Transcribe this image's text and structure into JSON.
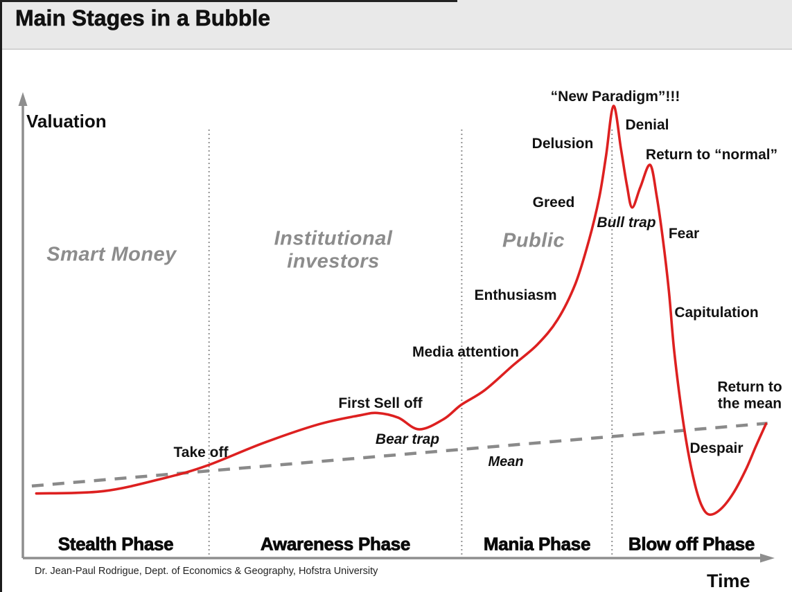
{
  "title": "Main Stages in a Bubble",
  "attribution": "Dr. Jean-Paul Rodrigue, Dept. of Economics & Geography, Hofstra University",
  "colors": {
    "curve": "#dd2020",
    "mean_line": "#8a8a8a",
    "axis": "#8e8e8e",
    "divider": "#909090",
    "title_band_bg": "#e9e9e9",
    "group_label_gray": "#8c8c8c",
    "text": "#111111"
  },
  "chart_data": {
    "type": "line",
    "title": "Main Stages in a Bubble",
    "xlabel": "Time",
    "ylabel": "Valuation",
    "axis_numeric": false,
    "grid": false,
    "x_range": [
      0,
      100
    ],
    "y_range": [
      0,
      100
    ],
    "series": [
      {
        "name": "Valuation (bubble life-cycle)",
        "style": "solid",
        "points": [
          [
            1.8,
            13.8
          ],
          [
            10.8,
            14.3
          ],
          [
            19.2,
            17.2
          ],
          [
            24.7,
            19.8
          ],
          [
            32.2,
            24.6
          ],
          [
            39.6,
            28.6
          ],
          [
            45.1,
            30.5
          ],
          [
            47.4,
            31.0
          ],
          [
            50.2,
            30.0
          ],
          [
            53.0,
            27.5
          ],
          [
            56.3,
            29.7
          ],
          [
            58.6,
            32.7
          ],
          [
            61.8,
            35.9
          ],
          [
            65.5,
            41.1
          ],
          [
            68.8,
            45.6
          ],
          [
            71.5,
            50.9
          ],
          [
            73.9,
            58.6
          ],
          [
            75.7,
            67.8
          ],
          [
            77.1,
            77.1
          ],
          [
            78.0,
            85.9
          ],
          [
            79.0,
            96.6
          ],
          [
            80.0,
            87.4
          ],
          [
            80.8,
            79.6
          ],
          [
            81.5,
            74.9
          ],
          [
            82.6,
            79.3
          ],
          [
            83.9,
            84.0
          ],
          [
            84.8,
            77.1
          ],
          [
            85.6,
            68.2
          ],
          [
            86.4,
            57.1
          ],
          [
            87.1,
            44.5
          ],
          [
            88.0,
            32.7
          ],
          [
            88.9,
            23.4
          ],
          [
            89.9,
            15.7
          ],
          [
            90.8,
            11.2
          ],
          [
            91.8,
            9.3
          ],
          [
            93.3,
            10.4
          ],
          [
            95.0,
            13.8
          ],
          [
            96.7,
            18.9
          ],
          [
            98.1,
            24.1
          ],
          [
            99.4,
            28.7
          ]
        ]
      },
      {
        "name": "Mean",
        "style": "dashed",
        "points": [
          [
            1.2,
            15.4
          ],
          [
            99.6,
            28.8
          ]
        ]
      }
    ],
    "phases": [
      {
        "label": "Stealth Phase",
        "start_t": 0,
        "end_t": 24.9
      },
      {
        "label": "Awareness Phase",
        "start_t": 24.9,
        "end_t": 58.7
      },
      {
        "label": "Mania Phase",
        "start_t": 58.7,
        "end_t": 78.8
      },
      {
        "label": "Blow off Phase",
        "start_t": 78.8,
        "end_t": 100
      }
    ],
    "group_labels": [
      {
        "id": "smart-money",
        "lines": [
          "Smart Money"
        ],
        "t": 11.9,
        "v": 64.8
      },
      {
        "id": "institutional-investors",
        "lines": [
          "Institutional",
          "investors"
        ],
        "t": 41.5,
        "v": 65.7
      },
      {
        "id": "public",
        "lines": [
          "Public"
        ],
        "t": 68.3,
        "v": 67.7
      }
    ],
    "annotations": [
      {
        "id": "take-off",
        "lines": [
          "Take off"
        ],
        "t": 23.8,
        "v": 22.5,
        "style": "bold"
      },
      {
        "id": "first-sell-off",
        "lines": [
          "First Sell off"
        ],
        "t": 47.8,
        "v": 33.0,
        "style": "bold"
      },
      {
        "id": "bear-trap",
        "lines": [
          "Bear trap"
        ],
        "t": 51.4,
        "v": 25.3,
        "style": "bold-italic"
      },
      {
        "id": "media-attention",
        "lines": [
          "Media attention"
        ],
        "t": 59.2,
        "v": 43.9,
        "style": "bold"
      },
      {
        "id": "enthusiasm",
        "lines": [
          "Enthusiasm"
        ],
        "t": 65.9,
        "v": 56.1,
        "style": "bold"
      },
      {
        "id": "greed",
        "lines": [
          "Greed"
        ],
        "t": 71.0,
        "v": 75.9,
        "style": "bold"
      },
      {
        "id": "delusion",
        "lines": [
          "Delusion"
        ],
        "t": 72.2,
        "v": 88.5,
        "style": "bold"
      },
      {
        "id": "new-paradigm",
        "lines": [
          "“New Paradigm”!!!"
        ],
        "t": 79.2,
        "v": 98.5,
        "style": "bold"
      },
      {
        "id": "denial",
        "lines": [
          "Denial"
        ],
        "t": 83.5,
        "v": 92.5,
        "style": "bold"
      },
      {
        "id": "return-to-normal",
        "lines": [
          "Return to “normal”"
        ],
        "t": 92.1,
        "v": 86.1,
        "style": "bold"
      },
      {
        "id": "bull-trap",
        "lines": [
          "Bull trap"
        ],
        "t": 80.7,
        "v": 71.6,
        "style": "bold-italic"
      },
      {
        "id": "fear",
        "lines": [
          "Fear"
        ],
        "t": 88.4,
        "v": 69.2,
        "style": "bold"
      },
      {
        "id": "capitulation",
        "lines": [
          "Capitulation"
        ],
        "t": 92.8,
        "v": 52.4,
        "style": "bold"
      },
      {
        "id": "return-to-the-mean",
        "lines": [
          "Return to",
          "the mean"
        ],
        "t": 97.2,
        "v": 34.8,
        "style": "bold"
      },
      {
        "id": "despair",
        "lines": [
          "Despair"
        ],
        "t": 92.8,
        "v": 23.4,
        "style": "bold"
      },
      {
        "id": "mean",
        "lines": [
          "Mean"
        ],
        "t": 64.6,
        "v": 20.6,
        "style": "italic"
      }
    ]
  }
}
